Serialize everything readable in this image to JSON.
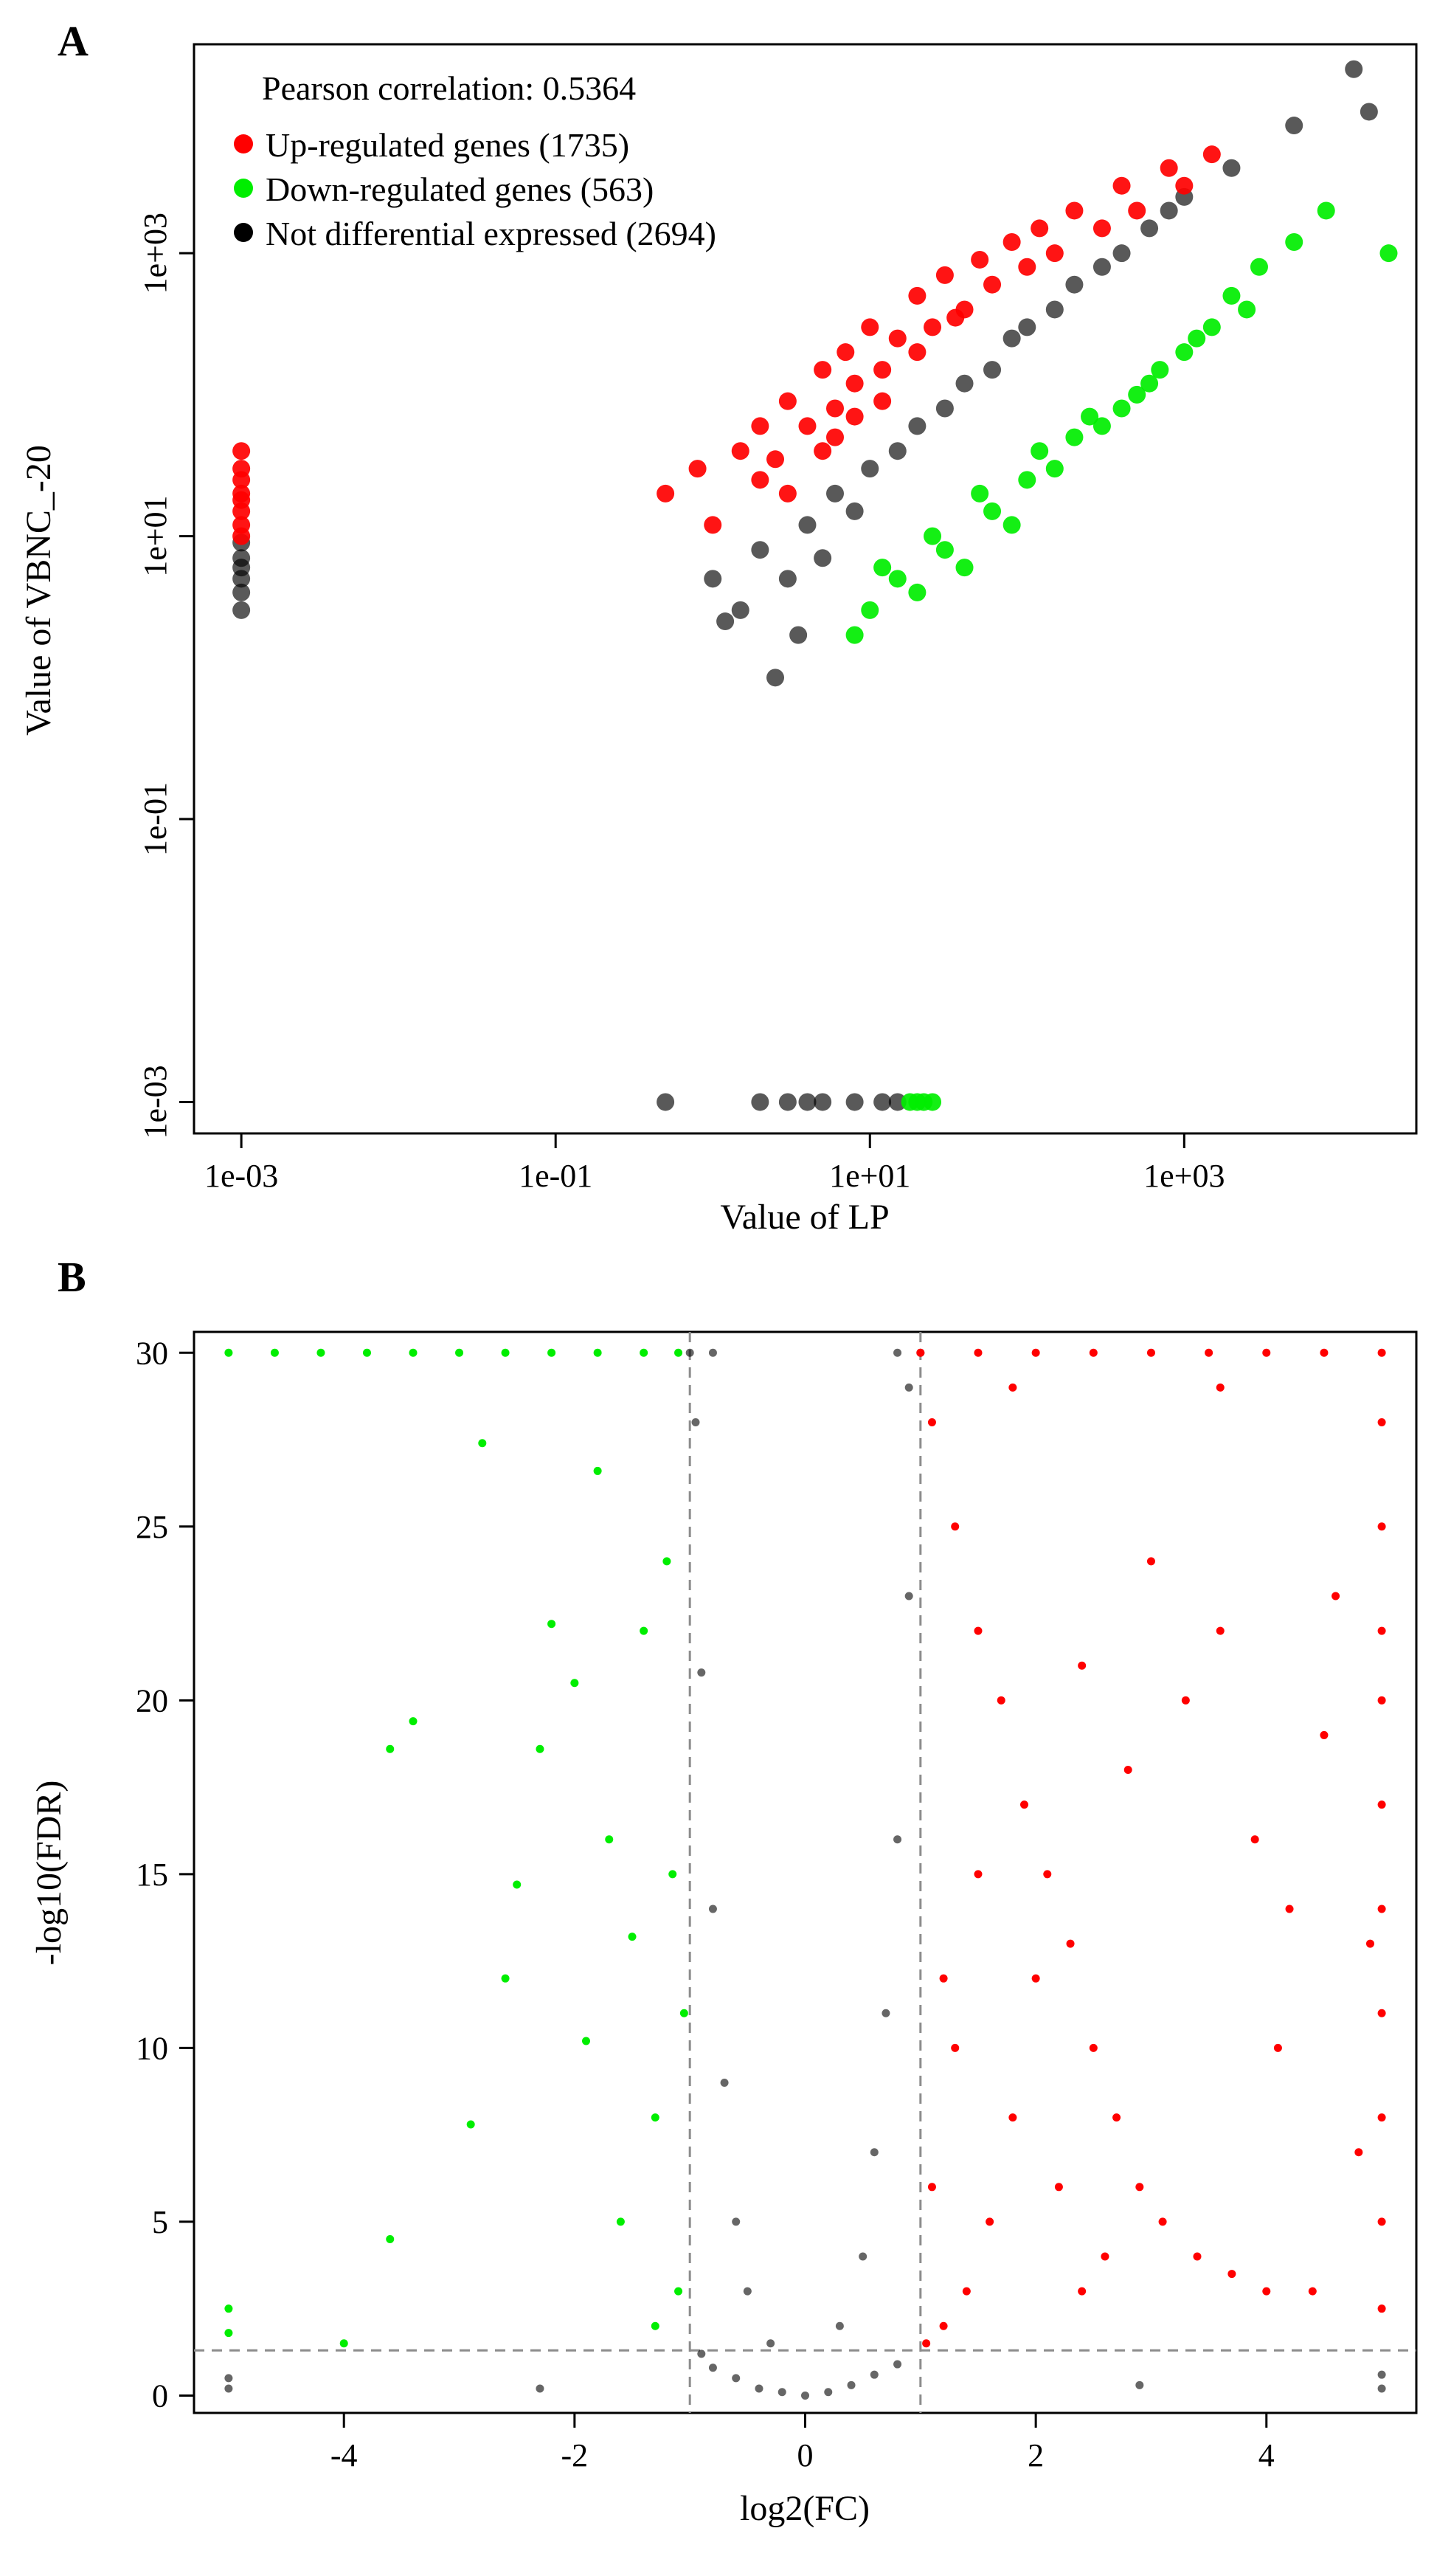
{
  "chart_data": [
    {
      "panel": "A",
      "type": "scatter",
      "xlabel": "Value of LP",
      "ylabel": "Value of VBNC_-20",
      "x_scale": "log",
      "y_scale": "log",
      "xlim": [
        0.0005,
        30000
      ],
      "ylim": [
        0.0006,
        30000
      ],
      "x_ticks": [
        0.001,
        0.1,
        10,
        1000
      ],
      "x_tick_labels": [
        "1e-03",
        "1e-01",
        "1e+01",
        "1e+03"
      ],
      "y_ticks": [
        0.001,
        0.1,
        10,
        1000
      ],
      "y_tick_labels": [
        "1e-03",
        "1e-01",
        "1e+01",
        "1e+03"
      ],
      "correlation_label": "Pearson correlation: 0.5364",
      "legend": [
        {
          "label": "Up-regulated genes (1735)",
          "color": "#ff0000"
        },
        {
          "label": "Down-regulated genes (563)",
          "color": "#00ee00"
        },
        {
          "label": "Not differential expressed (2694)",
          "color": "#000000"
        }
      ],
      "series": [
        {
          "name": "Up-regulated",
          "color": "#ff0000",
          "points": [
            [
              0.001,
              40
            ],
            [
              0.001,
              25
            ],
            [
              0.001,
              15
            ],
            [
              0.001,
              12
            ],
            [
              0.001,
              20
            ],
            [
              0.001,
              30
            ],
            [
              0.001,
              18
            ],
            [
              0.001,
              10
            ],
            [
              0.5,
              20
            ],
            [
              0.8,
              30
            ],
            [
              1,
              12
            ],
            [
              1.5,
              40
            ],
            [
              2,
              60
            ],
            [
              2.5,
              35
            ],
            [
              3,
              90
            ],
            [
              4,
              60
            ],
            [
              5,
              150
            ],
            [
              6,
              80
            ],
            [
              7,
              200
            ],
            [
              8,
              120
            ],
            [
              10,
              300
            ],
            [
              12,
              150
            ],
            [
              15,
              250
            ],
            [
              20,
              500
            ],
            [
              25,
              300
            ],
            [
              30,
              700
            ],
            [
              40,
              400
            ],
            [
              50,
              900
            ],
            [
              60,
              600
            ],
            [
              80,
              1200
            ],
            [
              100,
              800
            ],
            [
              120,
              1500
            ],
            [
              150,
              1000
            ],
            [
              200,
              2000
            ],
            [
              300,
              1500
            ],
            [
              400,
              3000
            ],
            [
              500,
              2000
            ],
            [
              800,
              4000
            ],
            [
              1000,
              3000
            ],
            [
              1500,
              5000
            ],
            [
              3,
              20
            ],
            [
              5,
              40
            ],
            [
              8,
              70
            ],
            [
              12,
              90
            ],
            [
              2,
              25
            ],
            [
              6,
              50
            ],
            [
              20,
              200
            ],
            [
              35,
              350
            ]
          ]
        },
        {
          "name": "Down-regulated",
          "color": "#00ee00",
          "points": [
            [
              10,
              3
            ],
            [
              15,
              5
            ],
            [
              20,
              4
            ],
            [
              30,
              8
            ],
            [
              40,
              6
            ],
            [
              60,
              15
            ],
            [
              80,
              12
            ],
            [
              100,
              25
            ],
            [
              150,
              30
            ],
            [
              200,
              50
            ],
            [
              300,
              60
            ],
            [
              400,
              80
            ],
            [
              500,
              100
            ],
            [
              700,
              150
            ],
            [
              1000,
              200
            ],
            [
              1500,
              300
            ],
            [
              2000,
              500
            ],
            [
              3000,
              800
            ],
            [
              5000,
              1200
            ],
            [
              8000,
              2000
            ],
            [
              20000,
              1000
            ],
            [
              8,
              2
            ],
            [
              12,
              6
            ],
            [
              25,
              10
            ],
            [
              50,
              20
            ],
            [
              120,
              40
            ],
            [
              250,
              70
            ],
            [
              600,
              120
            ],
            [
              1200,
              250
            ],
            [
              2500,
              400
            ],
            [
              18,
              0.001
            ],
            [
              20,
              0.001
            ],
            [
              22,
              0.001
            ],
            [
              25,
              0.001
            ]
          ]
        },
        {
          "name": "Not differential",
          "color": "#000000",
          "points": [
            [
              0.001,
              9
            ],
            [
              0.001,
              7
            ],
            [
              0.001,
              5
            ],
            [
              0.001,
              4
            ],
            [
              0.001,
              3
            ],
            [
              0.001,
              6
            ],
            [
              1,
              5
            ],
            [
              1.5,
              3
            ],
            [
              2,
              8
            ],
            [
              3,
              5
            ],
            [
              4,
              12
            ],
            [
              5,
              7
            ],
            [
              6,
              20
            ],
            [
              8,
              15
            ],
            [
              10,
              30
            ],
            [
              15,
              40
            ],
            [
              20,
              60
            ],
            [
              30,
              80
            ],
            [
              40,
              120
            ],
            [
              60,
              150
            ],
            [
              80,
              250
            ],
            [
              100,
              300
            ],
            [
              150,
              400
            ],
            [
              200,
              600
            ],
            [
              300,
              800
            ],
            [
              400,
              1000
            ],
            [
              600,
              1500
            ],
            [
              800,
              2000
            ],
            [
              1000,
              2500
            ],
            [
              2000,
              4000
            ],
            [
              5000,
              8000
            ],
            [
              12000,
              20000
            ],
            [
              15000,
              10000
            ],
            [
              2.5,
              1
            ],
            [
              3.5,
              2
            ],
            [
              1.2,
              2.5
            ],
            [
              0.5,
              0.001
            ],
            [
              2,
              0.001
            ],
            [
              3,
              0.001
            ],
            [
              4,
              0.001
            ],
            [
              5,
              0.001
            ],
            [
              8,
              0.001
            ],
            [
              12,
              0.001
            ],
            [
              15,
              0.001
            ]
          ]
        }
      ]
    },
    {
      "panel": "B",
      "type": "scatter",
      "xlabel": "log2(FC)",
      "ylabel": "-log10(FDR)",
      "xlim": [
        -5.3,
        5.3
      ],
      "ylim": [
        -0.5,
        30.6
      ],
      "x_ticks": [
        -4,
        -2,
        0,
        2,
        4
      ],
      "x_tick_labels": [
        "-4",
        "-2",
        "0",
        "2",
        "4"
      ],
      "y_ticks": [
        0,
        5,
        10,
        15,
        20,
        25,
        30
      ],
      "y_tick_labels": [
        "0",
        "5",
        "10",
        "15",
        "20",
        "25",
        "30"
      ],
      "thresholds": {
        "log2fc": [
          -1,
          1
        ],
        "neg_log10_fdr": 1.3
      },
      "series": [
        {
          "name": "Down-regulated",
          "color": "#00ee00",
          "points": [
            [
              -5,
              30
            ],
            [
              -4.6,
              30
            ],
            [
              -4.2,
              30
            ],
            [
              -3.8,
              30
            ],
            [
              -3.4,
              30
            ],
            [
              -3,
              30
            ],
            [
              -2.6,
              30
            ],
            [
              -2.2,
              30
            ],
            [
              -1.8,
              30
            ],
            [
              -1.4,
              30
            ],
            [
              -1.1,
              30
            ],
            [
              -5,
              2.5
            ],
            [
              -5,
              1.8
            ],
            [
              -4,
              1.5
            ],
            [
              -3.6,
              4.5
            ],
            [
              -3.4,
              19.4
            ],
            [
              -3.6,
              18.6
            ],
            [
              -2.9,
              7.8
            ],
            [
              -2.8,
              27.4
            ],
            [
              -2.6,
              12
            ],
            [
              -2.5,
              14.7
            ],
            [
              -2.3,
              18.6
            ],
            [
              -2.2,
              22.2
            ],
            [
              -2,
              20.5
            ],
            [
              -1.9,
              10.2
            ],
            [
              -1.8,
              26.6
            ],
            [
              -1.7,
              16
            ],
            [
              -1.6,
              5
            ],
            [
              -1.5,
              13.2
            ],
            [
              -1.4,
              22
            ],
            [
              -1.3,
              8
            ],
            [
              -1.2,
              24
            ],
            [
              -1.1,
              3
            ],
            [
              -1.15,
              15
            ],
            [
              -1.05,
              11
            ],
            [
              -1.3,
              2
            ]
          ]
        },
        {
          "name": "Not differential",
          "color": "#000000",
          "points": [
            [
              -0.9,
              1.2
            ],
            [
              -0.8,
              0.8
            ],
            [
              -0.6,
              0.5
            ],
            [
              -0.4,
              0.2
            ],
            [
              -0.2,
              0.1
            ],
            [
              0,
              0
            ],
            [
              0.2,
              0.1
            ],
            [
              0.4,
              0.3
            ],
            [
              0.6,
              0.6
            ],
            [
              0.8,
              0.9
            ],
            [
              -0.9,
              20.8
            ],
            [
              -0.8,
              14
            ],
            [
              -0.7,
              9
            ],
            [
              -0.6,
              5
            ],
            [
              -0.5,
              3
            ],
            [
              -0.3,
              1.5
            ],
            [
              0.3,
              2
            ],
            [
              0.5,
              4
            ],
            [
              0.6,
              7
            ],
            [
              0.7,
              11
            ],
            [
              0.8,
              16
            ],
            [
              0.9,
              23
            ],
            [
              0.9,
              29
            ],
            [
              -0.95,
              28
            ],
            [
              -5,
              0.2
            ],
            [
              -5,
              0.5
            ],
            [
              5,
              0.2
            ],
            [
              5,
              0.6
            ],
            [
              -2.3,
              0.2
            ],
            [
              2.9,
              0.3
            ],
            [
              -1.0,
              30
            ],
            [
              1.0,
              30
            ],
            [
              0.8,
              30
            ],
            [
              -0.8,
              30
            ]
          ]
        },
        {
          "name": "Up-regulated",
          "color": "#ff0000",
          "points": [
            [
              1,
              30
            ],
            [
              1.5,
              30
            ],
            [
              2,
              30
            ],
            [
              2.5,
              30
            ],
            [
              3,
              30
            ],
            [
              3.5,
              30
            ],
            [
              4,
              30
            ],
            [
              4.5,
              30
            ],
            [
              5,
              30
            ],
            [
              5,
              28
            ],
            [
              5,
              25
            ],
            [
              5,
              22
            ],
            [
              5,
              20
            ],
            [
              5,
              17
            ],
            [
              5,
              14
            ],
            [
              5,
              11
            ],
            [
              5,
              8
            ],
            [
              5,
              5
            ],
            [
              5,
              2.5
            ],
            [
              1.1,
              28
            ],
            [
              1.3,
              25
            ],
            [
              1.5,
              22
            ],
            [
              1.7,
              20
            ],
            [
              1.9,
              17
            ],
            [
              2.1,
              15
            ],
            [
              2.3,
              13
            ],
            [
              2.5,
              10
            ],
            [
              2.7,
              8
            ],
            [
              2.9,
              6
            ],
            [
              3.1,
              5
            ],
            [
              3.4,
              4
            ],
            [
              3.7,
              3.5
            ],
            [
              4,
              3
            ],
            [
              4.4,
              3
            ],
            [
              4.8,
              7
            ],
            [
              1.2,
              2
            ],
            [
              1.4,
              3
            ],
            [
              1.6,
              5
            ],
            [
              1.8,
              8
            ],
            [
              2,
              12
            ],
            [
              2.2,
              6
            ],
            [
              2.4,
              3
            ],
            [
              2.6,
              4
            ],
            [
              2.8,
              18
            ],
            [
              3,
              24
            ],
            [
              3.3,
              20
            ],
            [
              3.6,
              22
            ],
            [
              3.9,
              16
            ],
            [
              4.2,
              14
            ],
            [
              4.6,
              23
            ],
            [
              4.9,
              13
            ],
            [
              1.1,
              6
            ],
            [
              1.3,
              10
            ],
            [
              1.5,
              15
            ],
            [
              1.8,
              29
            ],
            [
              2.4,
              21
            ],
            [
              3.6,
              29
            ],
            [
              4.1,
              10
            ],
            [
              4.5,
              19
            ],
            [
              1.05,
              1.5
            ],
            [
              1.2,
              12
            ]
          ]
        }
      ]
    }
  ]
}
